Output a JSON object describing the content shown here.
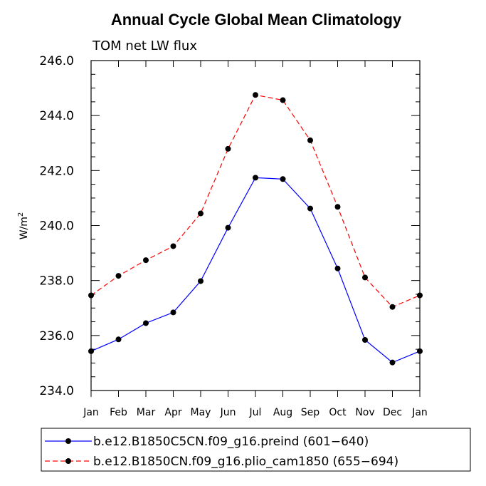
{
  "chart_data": {
    "type": "line",
    "title": "Annual Cycle Global Mean Climatology",
    "subtitle": "TOM net LW flux",
    "ylabel": "W/m",
    "ylabel_superscript": "2",
    "xlabel": "",
    "categories": [
      "Jan",
      "Feb",
      "Mar",
      "Apr",
      "May",
      "Jun",
      "Jul",
      "Aug",
      "Sep",
      "Oct",
      "Nov",
      "Dec",
      "Jan"
    ],
    "ylim": [
      234.0,
      246.0
    ],
    "yticks": [
      "234.0",
      "236.0",
      "238.0",
      "240.0",
      "242.0",
      "244.0",
      "246.0"
    ],
    "series": [
      {
        "name": "b.e12.B1850C5CN.f09_g16.preind (601−640)",
        "color": "#0000ff",
        "dash": "solid",
        "values": [
          235.43,
          235.86,
          236.45,
          236.84,
          237.98,
          239.92,
          241.74,
          241.69,
          240.62,
          238.44,
          235.84,
          235.02,
          235.43
        ]
      },
      {
        "name": "b.e12.B1850CN.f09_g16.plio_cam1850 (655−694)",
        "color": "#ff0000",
        "dash": "dashed",
        "values": [
          237.46,
          238.17,
          238.74,
          239.25,
          240.44,
          242.79,
          244.75,
          244.56,
          243.1,
          240.68,
          238.11,
          237.04,
          237.46
        ]
      }
    ]
  }
}
